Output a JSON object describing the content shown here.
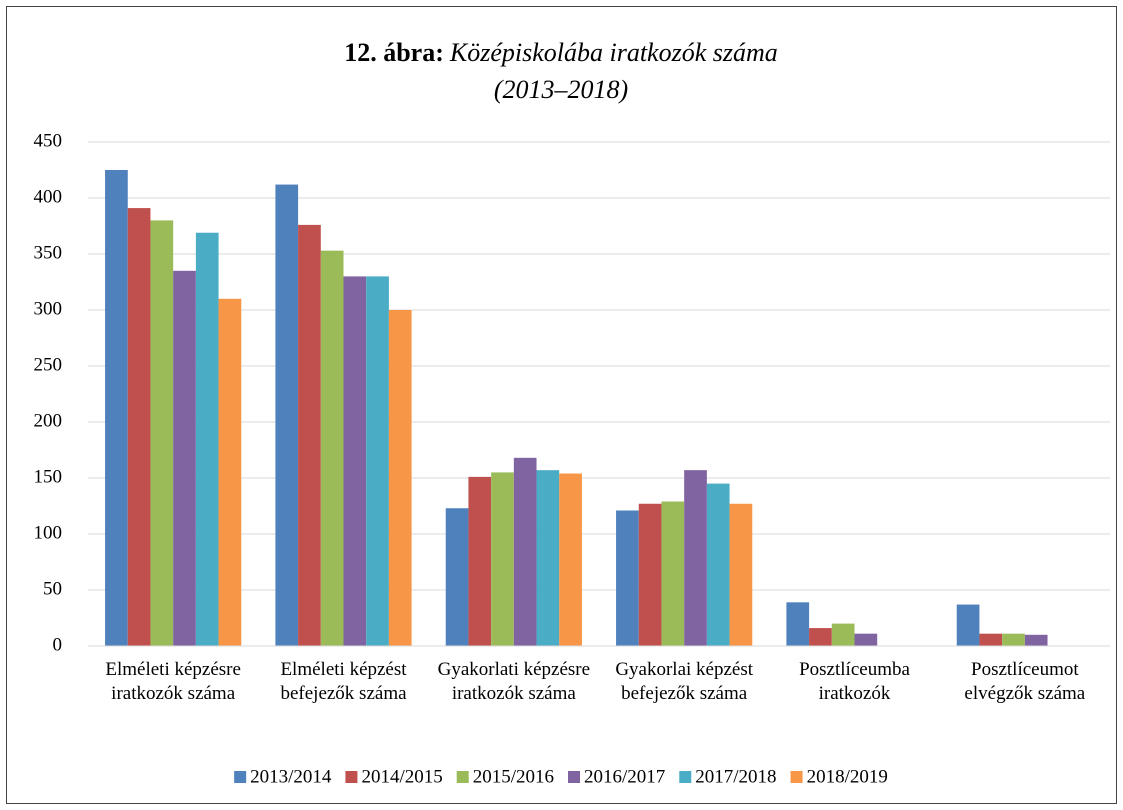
{
  "chart_data": {
    "type": "bar",
    "title_label": "12. ábra:",
    "title": "Középiskolába iratkozók száma",
    "subtitle": "(2013–2018)",
    "categories": [
      "Elméleti képzésre iratkozók száma",
      "Elméleti képzést befejezők száma",
      "Gyakorlati képzésre iratkozók száma",
      "Gyakorlai képzést befejezők száma",
      "Posztlíceumba iratkozók",
      "Posztlíceumot elvégzők száma"
    ],
    "series": [
      {
        "name": "2013/2014",
        "color": "#4f81bd",
        "values": [
          425,
          412,
          123,
          121,
          39,
          37
        ]
      },
      {
        "name": "2014/2015",
        "color": "#c0504d",
        "values": [
          391,
          376,
          151,
          127,
          16,
          11
        ]
      },
      {
        "name": "2015/2016",
        "color": "#9bbb59",
        "values": [
          380,
          353,
          155,
          129,
          20,
          11
        ]
      },
      {
        "name": "2016/2017",
        "color": "#8064a2",
        "values": [
          335,
          330,
          168,
          157,
          11,
          10
        ]
      },
      {
        "name": "2017/2018",
        "color": "#4bacc6",
        "values": [
          369,
          330,
          157,
          145,
          null,
          null
        ]
      },
      {
        "name": "2018/2019",
        "color": "#f79646",
        "values": [
          310,
          300,
          154,
          127,
          null,
          null
        ]
      }
    ],
    "ylim": [
      0,
      450
    ],
    "yticks": [
      0,
      50,
      100,
      150,
      200,
      250,
      300,
      350,
      400,
      450
    ],
    "grid": true,
    "legend": "bottom"
  }
}
